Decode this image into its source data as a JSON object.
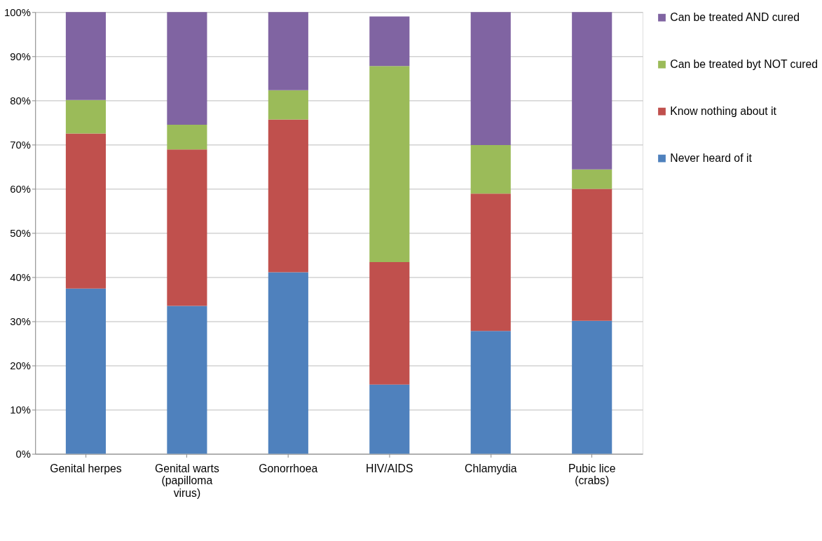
{
  "chart_data": {
    "type": "bar",
    "stacked": true,
    "categories": [
      "Genital herpes",
      "Genital warts\n(papilloma\nvirus)",
      "Gonorrhoea",
      "HIV/AIDS",
      "Chlamydia",
      "Pubic lice\n(crabs)"
    ],
    "series": [
      {
        "name": "Never heard of it",
        "color": "#4f81bd",
        "values": [
          37.4,
          33.5,
          41.1,
          15.7,
          27.8,
          30.1
        ]
      },
      {
        "name": "Know nothing about it",
        "color": "#c0504d",
        "values": [
          35.1,
          35.4,
          34.6,
          27.7,
          31.1,
          29.9
        ]
      },
      {
        "name": "Can be treated byt NOT cured",
        "color": "#9bbb59",
        "values": [
          7.6,
          5.6,
          6.6,
          44.4,
          11.0,
          4.4
        ]
      },
      {
        "name": "Can be treated AND cured",
        "color": "#8064a2",
        "values": [
          19.9,
          25.5,
          17.7,
          11.2,
          30.1,
          35.6
        ]
      }
    ],
    "ylim": [
      0,
      100
    ],
    "yticks": [
      {
        "value": 0,
        "label": "0%"
      },
      {
        "value": 10,
        "label": "10%"
      },
      {
        "value": 20,
        "label": "20%"
      },
      {
        "value": 30,
        "label": "30%"
      },
      {
        "value": 40,
        "label": "40%"
      },
      {
        "value": 50,
        "label": "50%"
      },
      {
        "value": 60,
        "label": "60%"
      },
      {
        "value": 70,
        "label": "70%"
      },
      {
        "value": 80,
        "label": "80%"
      },
      {
        "value": 90,
        "label": "90%"
      },
      {
        "value": 100,
        "label": "100%"
      }
    ],
    "grid": "y",
    "legend": "right"
  }
}
